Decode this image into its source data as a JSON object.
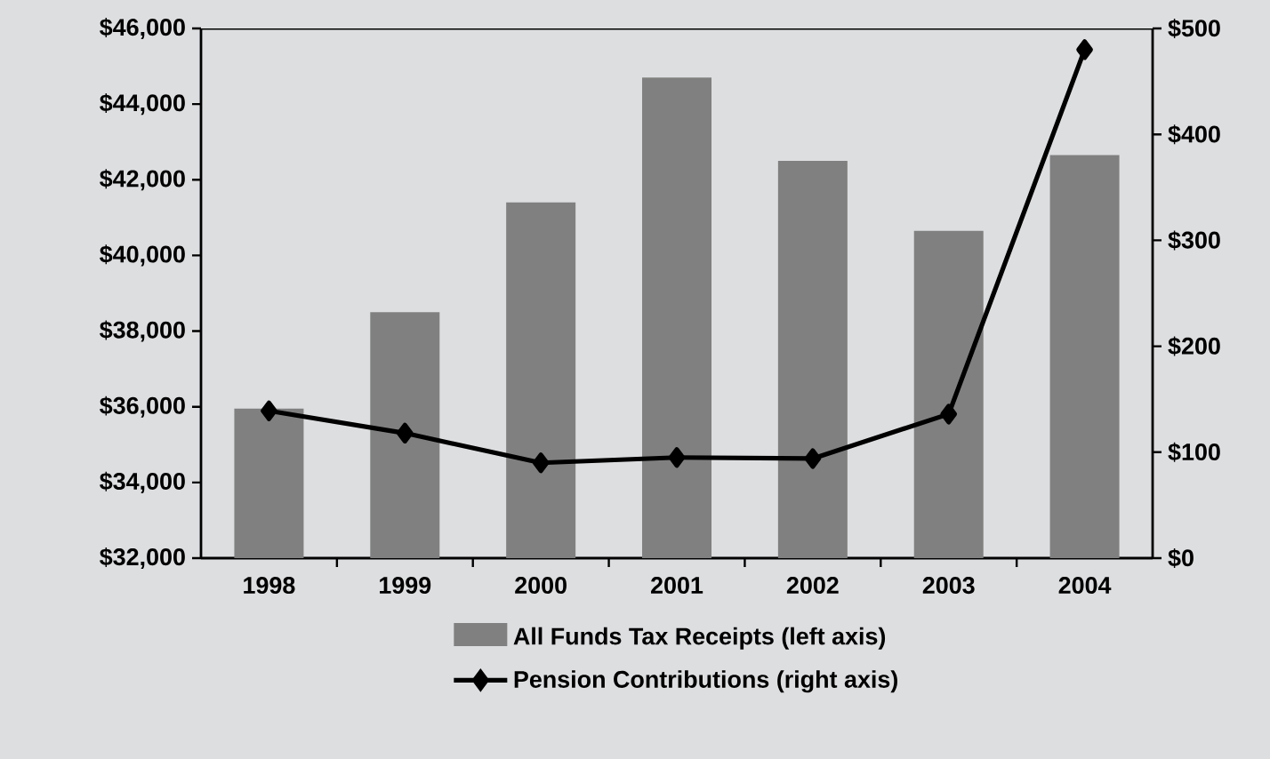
{
  "chart_data": {
    "type": "bar",
    "categories": [
      "1998",
      "1999",
      "2000",
      "2001",
      "2002",
      "2003",
      "2004"
    ],
    "series": [
      {
        "name": "All Funds Tax Receipts (left axis)",
        "color": "#808080",
        "values": [
          35950,
          38500,
          41400,
          44700,
          42500,
          40650,
          42650
        ]
      },
      {
        "name": "Pension Contributions (right axis)",
        "type": "line",
        "axis": "y2",
        "color": "#000000",
        "marker": "diamond",
        "line_style": "solid",
        "values": [
          139,
          118,
          90,
          95,
          94,
          136,
          480
        ]
      }
    ],
    "ylim": [
      32000,
      46000
    ],
    "yticks": [
      {
        "value": 32000,
        "label": "$32,000"
      },
      {
        "value": 34000,
        "label": "$34,000"
      },
      {
        "value": 36000,
        "label": "$36,000"
      },
      {
        "value": 38000,
        "label": "$38,000"
      },
      {
        "value": 40000,
        "label": "$40,000"
      },
      {
        "value": 42000,
        "label": "$42,000"
      },
      {
        "value": 44000,
        "label": "$44,000"
      },
      {
        "value": 46000,
        "label": "$46,000"
      }
    ],
    "y2lim": [
      0,
      500
    ],
    "y2ticks": [
      {
        "value": 0,
        "label": "$0"
      },
      {
        "value": 100,
        "label": "$100"
      },
      {
        "value": 200,
        "label": "$200"
      },
      {
        "value": 300,
        "label": "$300"
      },
      {
        "value": 400,
        "label": "$400"
      },
      {
        "value": 500,
        "label": "$500"
      }
    ],
    "legend": "bottom"
  }
}
